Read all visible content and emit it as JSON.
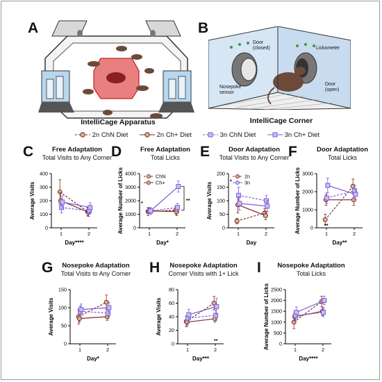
{
  "panels": {
    "A": {
      "letter": "A",
      "caption": "IntelliCage Apparatus"
    },
    "B": {
      "letter": "B",
      "caption": "IntelliCage Corner",
      "callouts": {
        "door_closed": "Door\n(closed)",
        "lickometer": "Lickometer",
        "nosepoke": "Nosepoke\nsensor",
        "door_open": "Door\n(open)"
      }
    }
  },
  "legend": [
    {
      "label": "2n ChN Diet",
      "marker": "circle",
      "line": "dashed",
      "color": "#8b1a1a"
    },
    {
      "label": "2n Ch+ Diet",
      "marker": "circle",
      "line": "solid",
      "color": "#8b1a1a"
    },
    {
      "label": "3n ChN Diet",
      "marker": "square",
      "line": "dashed",
      "color": "#6b4fb8"
    },
    {
      "label": "3n Ch+ Diet",
      "marker": "square",
      "line": "solid",
      "color": "#6b4fb8"
    }
  ],
  "colors": {
    "two_n": "#7a2a2a",
    "two_n_fill": "#d9b48a",
    "three_n": "#7a5cd6",
    "three_n_fill": "#c9bff0"
  },
  "chart_data": [
    {
      "letter": "C",
      "type": "line",
      "title": "Free Adaptation",
      "subtitle": "Total Visits to Any Corner",
      "xlabel": "Day****",
      "ylabel": "Average Visits",
      "ylim": [
        0,
        400
      ],
      "yticks": [
        0,
        100,
        200,
        300,
        400
      ],
      "x": [
        1,
        2
      ],
      "series": [
        {
          "group": "2n",
          "diet": "ChN",
          "values": [
            265,
            120
          ],
          "err": [
            90,
            30
          ]
        },
        {
          "group": "2n",
          "diet": "Ch+",
          "values": [
            200,
            115
          ],
          "err": [
            60,
            30
          ]
        },
        {
          "group": "3n",
          "diet": "ChN",
          "values": [
            150,
            125
          ],
          "err": [
            40,
            25
          ]
        },
        {
          "group": "3n",
          "diet": "Ch+",
          "values": [
            190,
            150
          ],
          "err": [
            45,
            35
          ]
        }
      ],
      "annotations": []
    },
    {
      "letter": "D",
      "type": "line",
      "title": "Free Adaptation",
      "subtitle": "Total Licks",
      "xlabel": "Day*",
      "ylabel": "Average Number of Licks",
      "ylim": [
        0,
        4000
      ],
      "yticks": [
        0,
        1000,
        2000,
        3000,
        4000
      ],
      "x": [
        1,
        2
      ],
      "series": [
        {
          "group": "2n",
          "diet": "ChN",
          "values": [
            1200,
            1300
          ],
          "err": [
            300,
            300
          ]
        },
        {
          "group": "2n",
          "diet": "Ch+",
          "values": [
            1250,
            1200
          ],
          "err": [
            200,
            300
          ]
        },
        {
          "group": "3n",
          "diet": "ChN",
          "values": [
            1250,
            1500
          ],
          "err": [
            200,
            300
          ]
        },
        {
          "group": "3n",
          "diet": "Ch+",
          "values": [
            1250,
            3050
          ],
          "err": [
            250,
            400
          ]
        }
      ],
      "inset_legend": [
        "ChN",
        "Ch+"
      ],
      "annotations": [
        "*",
        "**"
      ]
    },
    {
      "letter": "E",
      "type": "line",
      "title": "Door Adaptation",
      "subtitle": "Total Visits to Any Corner",
      "xlabel": "Day",
      "ylabel": "Average Visits",
      "ylim": [
        0,
        200
      ],
      "yticks": [
        0,
        50,
        100,
        150,
        200
      ],
      "x": [
        1,
        2
      ],
      "series": [
        {
          "group": "2n",
          "diet": "ChN",
          "values": [
            25,
            55
          ],
          "err": [
            10,
            15
          ]
        },
        {
          "group": "2n",
          "diet": "Ch+",
          "values": [
            85,
            45
          ],
          "err": [
            30,
            15
          ]
        },
        {
          "group": "3n",
          "diet": "ChN",
          "values": [
            120,
            100
          ],
          "err": [
            30,
            20
          ]
        },
        {
          "group": "3n",
          "diet": "Ch+",
          "values": [
            90,
            80
          ],
          "err": [
            25,
            20
          ]
        }
      ],
      "inset_legend": [
        "2n",
        "3n"
      ],
      "annotations": [
        "*"
      ]
    },
    {
      "letter": "F",
      "type": "line",
      "title": "Door Adaptation",
      "subtitle": "Total Licks",
      "xlabel": "Day**",
      "ylabel": "Average Number of Licks",
      "ylim": [
        0,
        3000
      ],
      "yticks": [
        0,
        1000,
        2000,
        3000
      ],
      "x": [
        1,
        2
      ],
      "series": [
        {
          "group": "2n",
          "diet": "ChN",
          "values": [
            450,
            2300
          ],
          "err": [
            300,
            400
          ]
        },
        {
          "group": "2n",
          "diet": "Ch+",
          "values": [
            1550,
            1550
          ],
          "err": [
            300,
            300
          ]
        },
        {
          "group": "3n",
          "diet": "ChN",
          "values": [
            1650,
            2050
          ],
          "err": [
            300,
            300
          ]
        },
        {
          "group": "3n",
          "diet": "Ch+",
          "values": [
            2350,
            1850
          ],
          "err": [
            400,
            300
          ]
        }
      ],
      "annotations": [
        "**"
      ]
    },
    {
      "letter": "G",
      "type": "line",
      "title": "Nosepoke Adaptation",
      "subtitle": "Total Visits to Any Corner",
      "xlabel": "Day*",
      "ylabel": "Average Visits",
      "ylim": [
        0,
        150
      ],
      "yticks": [
        0,
        50,
        100,
        150
      ],
      "x": [
        1,
        2
      ],
      "series": [
        {
          "group": "2n",
          "diet": "ChN",
          "values": [
            75,
            115
          ],
          "err": [
            20,
            20
          ]
        },
        {
          "group": "2n",
          "diet": "Ch+",
          "values": [
            70,
            75
          ],
          "err": [
            10,
            10
          ]
        },
        {
          "group": "3n",
          "diet": "ChN",
          "values": [
            90,
            85
          ],
          "err": [
            15,
            10
          ]
        },
        {
          "group": "3n",
          "diet": "Ch+",
          "values": [
            95,
            100
          ],
          "err": [
            15,
            15
          ]
        }
      ],
      "annotations": []
    },
    {
      "letter": "H",
      "type": "line",
      "title": "Nosepoke Adaptation",
      "subtitle": "Corner Visits with 1+ Lick",
      "xlabel": "Day***",
      "ylabel": "Average Visits",
      "ylim": [
        0,
        80
      ],
      "yticks": [
        0,
        20,
        40,
        60,
        80
      ],
      "x": [
        1,
        2
      ],
      "series": [
        {
          "group": "2n",
          "diet": "ChN",
          "values": [
            33,
            60
          ],
          "err": [
            8,
            10
          ]
        },
        {
          "group": "2n",
          "diet": "Ch+",
          "values": [
            32,
            37
          ],
          "err": [
            5,
            5
          ]
        },
        {
          "group": "3n",
          "diet": "ChN",
          "values": [
            38,
            42
          ],
          "err": [
            8,
            8
          ]
        },
        {
          "group": "3n",
          "diet": "Ch+",
          "values": [
            43,
            55
          ],
          "err": [
            8,
            12
          ]
        }
      ],
      "annotations": [
        "**"
      ]
    },
    {
      "letter": "I",
      "type": "line",
      "title": "Nosepoke Adaptation",
      "subtitle": "Total Licks",
      "xlabel": "Day****",
      "ylabel": "Average Number of Licks",
      "ylim": [
        0,
        2500
      ],
      "yticks": [
        0,
        500,
        1000,
        1500,
        2000,
        2500
      ],
      "x": [
        1,
        2
      ],
      "series": [
        {
          "group": "2n",
          "diet": "ChN",
          "values": [
            1000,
            1950
          ],
          "err": [
            300,
            250
          ]
        },
        {
          "group": "2n",
          "diet": "Ch+",
          "values": [
            1250,
            1500
          ],
          "err": [
            200,
            200
          ]
        },
        {
          "group": "3n",
          "diet": "ChN",
          "values": [
            1300,
            1450
          ],
          "err": [
            200,
            200
          ]
        },
        {
          "group": "3n",
          "diet": "Ch+",
          "values": [
            1450,
            2000
          ],
          "err": [
            250,
            200
          ]
        }
      ],
      "annotations": []
    }
  ]
}
